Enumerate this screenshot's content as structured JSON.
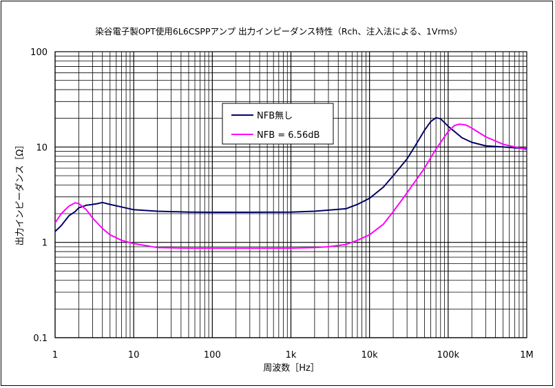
{
  "chart_data": {
    "type": "line",
    "title": "染谷電子製OPT使用6L6CSPPアンプ 出力インピーダンス特性（Rch、注入法による、1Vrms）",
    "xlabel": "周波数［Hz］",
    "ylabel": "出力インピーダンス［Ω］",
    "x_scale": "log",
    "y_scale": "log",
    "xlim": [
      1,
      1000000
    ],
    "ylim": [
      0.1,
      100
    ],
    "grid": true,
    "legend_position": "inside-center",
    "x_ticks": [
      {
        "value": 1,
        "label": "1"
      },
      {
        "value": 10,
        "label": "10"
      },
      {
        "value": 100,
        "label": "100"
      },
      {
        "value": 1000,
        "label": "1k"
      },
      {
        "value": 10000,
        "label": "10k"
      },
      {
        "value": 100000,
        "label": "100k"
      },
      {
        "value": 1000000,
        "label": "1M"
      }
    ],
    "y_ticks": [
      {
        "value": 0.1,
        "label": "0.1"
      },
      {
        "value": 1,
        "label": "1"
      },
      {
        "value": 10,
        "label": "10"
      },
      {
        "value": 100,
        "label": "100"
      }
    ],
    "series": [
      {
        "name": "NFB無し",
        "color": "#000066",
        "x": [
          1,
          1.2,
          1.5,
          1.8,
          2,
          2.5,
          3,
          3.5,
          4,
          5,
          7,
          10,
          20,
          50,
          100,
          300,
          1000,
          2000,
          5000,
          7000,
          10000,
          15000,
          20000,
          30000,
          40000,
          50000,
          60000,
          70000,
          80000,
          100000,
          150000,
          200000,
          300000,
          500000,
          1000000
        ],
        "y": [
          1.3,
          1.5,
          1.9,
          2.1,
          2.3,
          2.45,
          2.5,
          2.55,
          2.62,
          2.5,
          2.35,
          2.2,
          2.12,
          2.08,
          2.07,
          2.07,
          2.08,
          2.12,
          2.25,
          2.5,
          2.9,
          3.8,
          5.0,
          7.5,
          11,
          15,
          18.5,
          20.3,
          19.8,
          16.5,
          12.5,
          11.2,
          10.3,
          10.0,
          9.6
        ]
      },
      {
        "name": "NFB = 6.56dB",
        "color": "#ff00ff",
        "x": [
          1,
          1.2,
          1.5,
          1.8,
          2,
          2.5,
          3,
          4,
          5,
          7,
          10,
          15,
          20,
          50,
          100,
          300,
          1000,
          2000,
          3000,
          5000,
          7000,
          10000,
          15000,
          20000,
          30000,
          50000,
          70000,
          100000,
          120000,
          140000,
          170000,
          200000,
          300000,
          500000,
          1000000
        ],
        "y": [
          1.6,
          2.0,
          2.4,
          2.6,
          2.55,
          2.2,
          1.8,
          1.4,
          1.2,
          1.05,
          0.97,
          0.92,
          0.88,
          0.87,
          0.87,
          0.87,
          0.87,
          0.88,
          0.9,
          0.95,
          1.05,
          1.2,
          1.55,
          2.1,
          3.3,
          6.0,
          9.5,
          14.5,
          16.8,
          17.4,
          17.0,
          15.8,
          12.8,
          10.7,
          9.4
        ]
      }
    ]
  }
}
